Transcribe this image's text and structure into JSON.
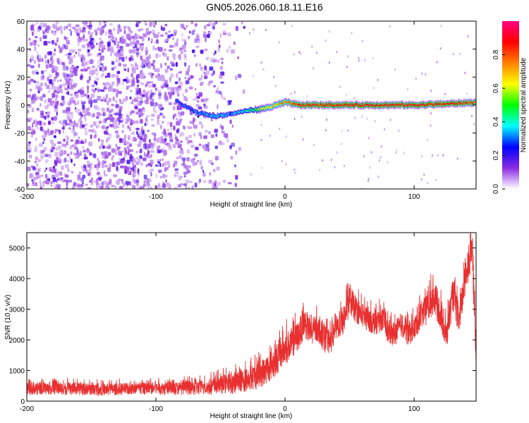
{
  "title": "GN05.2026.060.18.11.E16",
  "chart_data": [
    {
      "type": "heatmap",
      "xlabel": "Height of straight line (km)",
      "ylabel": "Frequency (Hz)",
      "xlim": [
        -200,
        148
      ],
      "ylim": [
        -60,
        60
      ],
      "xticks": [
        "-200",
        "-100",
        "0",
        "100"
      ],
      "yticks": [
        "-60",
        "-40",
        "-20",
        "0",
        "20",
        "40",
        "60"
      ],
      "colorbar": {
        "label": "Normalized spectral amplitude",
        "range": [
          0.0,
          1.0
        ],
        "ticks": [
          "0.0",
          "0.2",
          "0.4",
          "0.6",
          "0.8"
        ],
        "colors": [
          "#ffffff",
          "#8a2be2",
          "#0000ff",
          "#00ffff",
          "#00ff00",
          "#ffff00",
          "#ff8000",
          "#ff0000",
          "#ff007f"
        ]
      },
      "ridge": {
        "description_x": [
          -85,
          -70,
          -55,
          -40,
          -30,
          -20,
          -10,
          0,
          10,
          50,
          100,
          130,
          148
        ],
        "frequency": [
          3,
          -5,
          -8,
          -6,
          -4,
          -3,
          -1,
          2,
          0,
          0,
          0,
          1,
          2
        ],
        "amplitude": [
          0.25,
          0.3,
          0.35,
          0.3,
          0.4,
          0.55,
          0.7,
          0.75,
          0.85,
          0.88,
          0.85,
          0.88,
          0.8
        ]
      }
    },
    {
      "type": "line",
      "xlabel": "Height of straight line (km)",
      "ylabel": "SNR (10 * v/v)",
      "xlim": [
        -200,
        148
      ],
      "ylim": [
        0,
        5500
      ],
      "xticks": [
        "-200",
        "-100",
        "0",
        "100"
      ],
      "yticks": [
        "0",
        "1000",
        "2000",
        "3000",
        "4000",
        "5000"
      ],
      "color": "#e83030",
      "series": [
        {
          "x": [
            -200,
            -180,
            -160,
            -140,
            -120,
            -100,
            -80,
            -60,
            -50,
            -40,
            -30,
            -20,
            -10,
            0,
            5,
            10,
            15,
            20,
            25,
            30,
            35,
            40,
            45,
            50,
            55,
            60,
            65,
            70,
            75,
            80,
            85,
            90,
            95,
            100,
            105,
            110,
            115,
            120,
            125,
            130,
            135,
            140,
            145,
            148
          ],
          "y": [
            400,
            420,
            400,
            380,
            400,
            420,
            420,
            450,
            520,
            600,
            700,
            850,
            1200,
            1700,
            1900,
            2100,
            2600,
            2200,
            2400,
            2050,
            1900,
            2400,
            2600,
            3300,
            3000,
            2800,
            2650,
            2550,
            2700,
            2250,
            2200,
            2500,
            2200,
            2350,
            2800,
            3000,
            3400,
            2900,
            2100,
            3500,
            2600,
            4200,
            5000,
            1500
          ],
          "spread": [
            200,
            200,
            200,
            200,
            200,
            200,
            220,
            260,
            300,
            350,
            400,
            450,
            500,
            550,
            500,
            500,
            500,
            450,
            450,
            450,
            400,
            400,
            450,
            500,
            450,
            400,
            400,
            400,
            400,
            400,
            400,
            400,
            400,
            400,
            450,
            500,
            550,
            500,
            500,
            550,
            500,
            600,
            650,
            600
          ]
        }
      ]
    }
  ]
}
